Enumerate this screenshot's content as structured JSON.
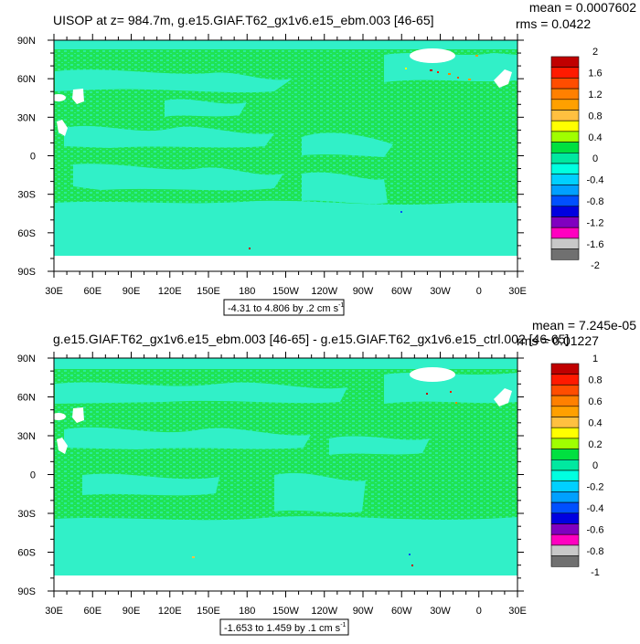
{
  "chart_data": [
    {
      "type": "heatmap",
      "title": "UISOP at z= 984.7m, g.e15.GIAF.T62_gx1v6.e15_ebm.003 [46-65]",
      "mean_text": "mean = 0.0007602",
      "rms_text": "rms = 0.0422",
      "range_text": "-4.31 to 4.806 by .2 cm s",
      "range_sup": "-1",
      "x_ticks": [
        "30E",
        "60E",
        "90E",
        "120E",
        "150E",
        "180",
        "150W",
        "120W",
        "90W",
        "60W",
        "30W",
        "0",
        "30E"
      ],
      "y_ticks": [
        "90N",
        "60N",
        "30N",
        "0",
        "30S",
        "60S",
        "90S"
      ],
      "colorbar_labels": [
        "2",
        "1.6",
        "1.2",
        "0.8",
        "0.4",
        "0",
        "-0.4",
        "-0.8",
        "-1.2",
        "-1.6",
        "-2"
      ],
      "field": {
        "dominant_value": 0.0,
        "secondary_value": -0.2
      }
    },
    {
      "type": "heatmap",
      "title": "g.e15.GIAF.T62_gx1v6.e15_ebm.003 [46-65] - g.e15.GIAF.T62_gx1v6.e15_ctrl.002 [46-65]",
      "mean_text": "mean = 7.245e-05",
      "rms_text": "rms = 0.01227",
      "range_text": "-1.653 to 1.459 by .1 cm s",
      "range_sup": "-1",
      "x_ticks": [
        "30E",
        "60E",
        "90E",
        "120E",
        "150E",
        "180",
        "150W",
        "120W",
        "90W",
        "60W",
        "30W",
        "0",
        "30E"
      ],
      "y_ticks": [
        "90N",
        "60N",
        "30N",
        "0",
        "30S",
        "60S",
        "90S"
      ],
      "colorbar_labels": [
        "1",
        "0.8",
        "0.6",
        "0.4",
        "0.2",
        "0",
        "-0.2",
        "-0.4",
        "-0.6",
        "-0.8",
        "-1"
      ],
      "field": {
        "dominant_value": 0.0,
        "secondary_value": -0.1
      }
    }
  ],
  "colors": {
    "levels": [
      "#c00000",
      "#ff1a00",
      "#ff4d00",
      "#ff8000",
      "#ffa000",
      "#ffc040",
      "#ffff00",
      "#a0ff00",
      "#00e040",
      "#00e8a0",
      "#00ffe0",
      "#00d0ff",
      "#00a0ff",
      "#0050ff",
      "#0000e0",
      "#8000c0",
      "#ff00c0",
      "#c8c8c8",
      "#707070"
    ],
    "field_main": "#1fe354",
    "field_secondary": "#31f0c8"
  }
}
